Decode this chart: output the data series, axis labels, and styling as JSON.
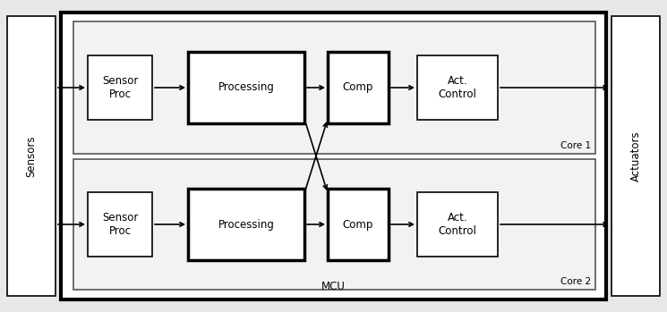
{
  "fig_bg": "#e8e8e8",
  "fig_w": 7.45,
  "fig_h": 3.49,
  "dpi": 100,
  "sensors": {
    "label": "Sensors"
  },
  "actuators": {
    "label": "Actuators"
  },
  "mcu_label": "MCU",
  "core1_label": "Core 1",
  "core2_label": "Core 2",
  "blocks_row1": [
    {
      "label": "Sensor\nProc",
      "bold": false
    },
    {
      "label": "Processing",
      "bold": true
    },
    {
      "label": "Comp",
      "bold": true
    },
    {
      "label": "Act.\nControl",
      "bold": false
    }
  ],
  "blocks_row2": [
    {
      "label": "Sensor\nProc",
      "bold": false
    },
    {
      "label": "Processing",
      "bold": true
    },
    {
      "label": "Comp",
      "bold": true
    },
    {
      "label": "Act.\nControl",
      "bold": false
    }
  ],
  "font_size": 8.5,
  "font_size_side": 8.5,
  "font_size_core": 7.5,
  "font_size_mcu": 8.5
}
